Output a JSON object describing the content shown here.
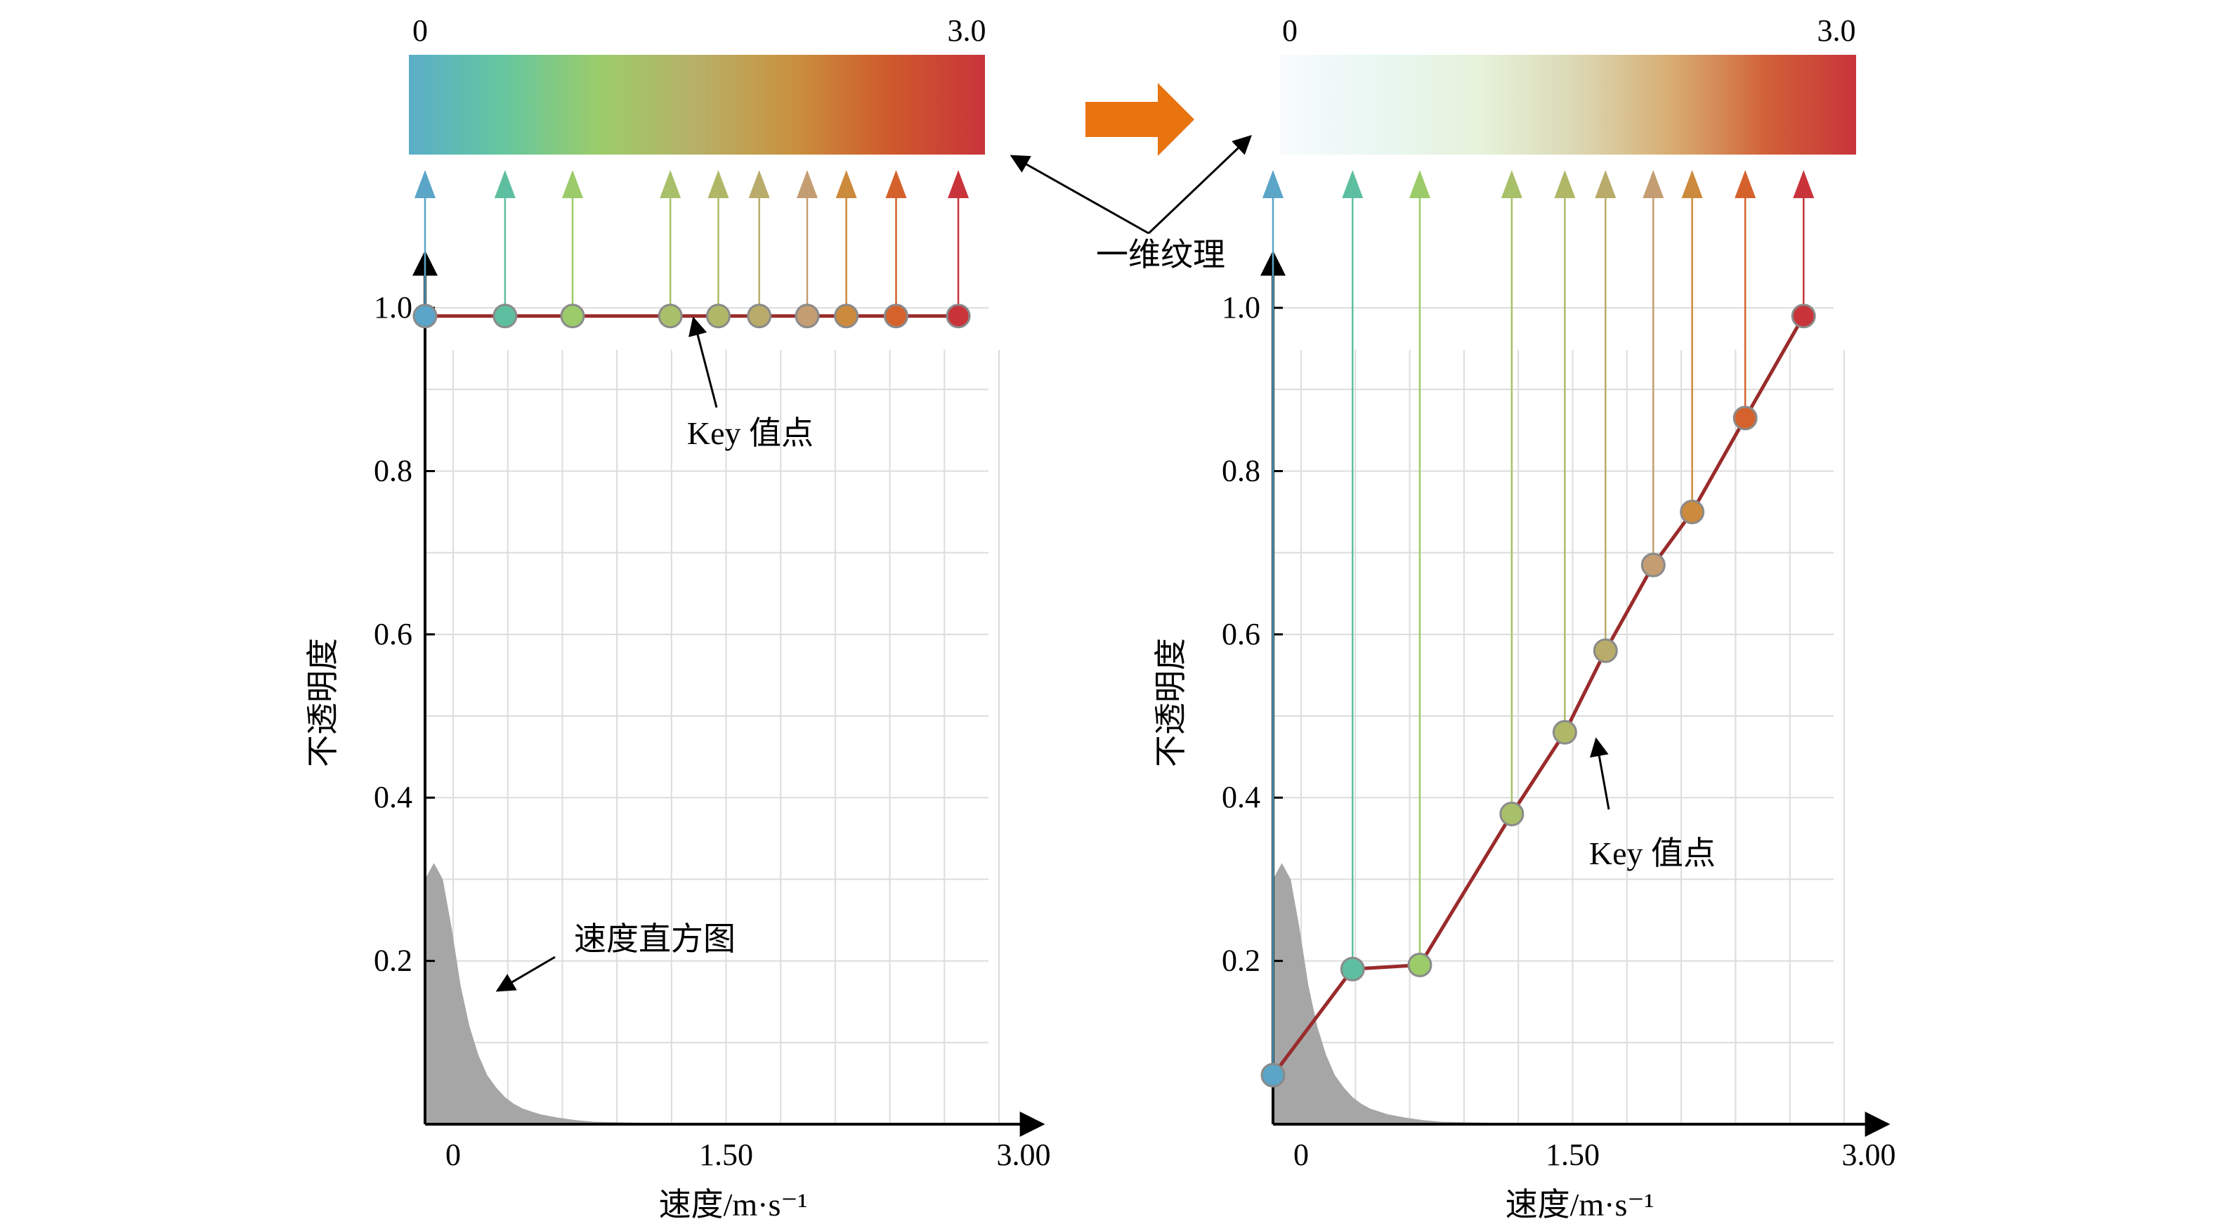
{
  "annotations": {
    "texture_label": "一维纹理",
    "key_label": "Key 值点",
    "histogram_label": "速度直方图"
  },
  "colorbar": {
    "left": {
      "min_label": "0",
      "max_label": "3.0"
    },
    "right": {
      "min_label": "0",
      "max_label": "3.0"
    },
    "stops": [
      "#5aaec8",
      "#66c79e",
      "#9ccc6a",
      "#b7b067",
      "#c9913f",
      "#cf5a2c",
      "#c8343a"
    ]
  },
  "colors": {
    "line": "#9a2b2b",
    "arrow_orange": "#e8730f",
    "histogram": "#a6a6a6",
    "grid": "#dcdcdc"
  },
  "chart_data": [
    {
      "type": "line",
      "xlabel": "速度/m·s⁻¹",
      "ylabel": "不透明度",
      "xticks": [
        "0",
        "1.50",
        "3.00"
      ],
      "xtick_values": [
        0,
        1.5,
        3.0
      ],
      "yticks": [
        "0.2",
        "0.4",
        "0.6",
        "0.8",
        "1.0"
      ],
      "ytick_values": [
        0.2,
        0.4,
        0.6,
        0.8,
        1.0
      ],
      "xlim": [
        -0.15,
        3.0
      ],
      "ylim": [
        0,
        1.05
      ],
      "grid": true,
      "points": [
        {
          "x": -0.15,
          "y": 0.99,
          "color": "#5aa5c8"
        },
        {
          "x": 0.3,
          "y": 0.99,
          "color": "#5ebfa0"
        },
        {
          "x": 0.68,
          "y": 0.99,
          "color": "#9ccb6a"
        },
        {
          "x": 1.23,
          "y": 0.99,
          "color": "#a8c06a"
        },
        {
          "x": 1.5,
          "y": 0.99,
          "color": "#b0b868"
        },
        {
          "x": 1.73,
          "y": 0.99,
          "color": "#b9ab6a"
        },
        {
          "x": 2.0,
          "y": 0.99,
          "color": "#c49e72"
        },
        {
          "x": 2.22,
          "y": 0.99,
          "color": "#cc8a3c"
        },
        {
          "x": 2.5,
          "y": 0.99,
          "color": "#d5622d"
        },
        {
          "x": 2.85,
          "y": 0.99,
          "color": "#c8343a"
        }
      ],
      "histogram": {
        "x": [
          -0.15,
          -0.1,
          -0.05,
          0.0,
          0.05,
          0.1,
          0.15,
          0.2,
          0.25,
          0.3,
          0.35,
          0.4,
          0.5,
          0.6,
          0.7,
          0.8,
          1.0,
          1.3,
          1.6,
          2.0,
          2.5,
          3.0
        ],
        "y": [
          0.3,
          0.32,
          0.3,
          0.24,
          0.17,
          0.12,
          0.085,
          0.06,
          0.045,
          0.033,
          0.025,
          0.019,
          0.012,
          0.008,
          0.005,
          0.003,
          0.002,
          0.001,
          0.0005,
          0.0003,
          0.0001,
          0
        ]
      }
    },
    {
      "type": "line",
      "xlabel": "速度/m·s⁻¹",
      "ylabel": "不透明度",
      "xticks": [
        "0",
        "1.50",
        "3.00"
      ],
      "xtick_values": [
        0,
        1.5,
        3.0
      ],
      "yticks": [
        "0.2",
        "0.4",
        "0.6",
        "0.8",
        "1.0"
      ],
      "ytick_values": [
        0.2,
        0.4,
        0.6,
        0.8,
        1.0
      ],
      "xlim": [
        -0.15,
        3.0
      ],
      "ylim": [
        0,
        1.05
      ],
      "grid": true,
      "points": [
        {
          "x": -0.15,
          "y": 0.06,
          "color": "#5aa5c8"
        },
        {
          "x": 0.3,
          "y": 0.19,
          "color": "#5ebfa0"
        },
        {
          "x": 0.68,
          "y": 0.195,
          "color": "#9ccb6a"
        },
        {
          "x": 1.2,
          "y": 0.38,
          "color": "#a8c06a"
        },
        {
          "x": 1.5,
          "y": 0.48,
          "color": "#b0b868"
        },
        {
          "x": 1.73,
          "y": 0.58,
          "color": "#b9ab6a"
        },
        {
          "x": 2.0,
          "y": 0.685,
          "color": "#c49e72"
        },
        {
          "x": 2.22,
          "y": 0.75,
          "color": "#cc8a3c"
        },
        {
          "x": 2.52,
          "y": 0.865,
          "color": "#d5622d"
        },
        {
          "x": 2.85,
          "y": 0.99,
          "color": "#c8343a"
        }
      ],
      "histogram": {
        "x": [
          -0.15,
          -0.1,
          -0.05,
          0.0,
          0.05,
          0.1,
          0.15,
          0.2,
          0.25,
          0.3,
          0.35,
          0.4,
          0.5,
          0.6,
          0.7,
          0.8,
          1.0,
          1.3,
          1.6,
          2.0,
          2.5,
          3.0
        ],
        "y": [
          0.3,
          0.32,
          0.3,
          0.24,
          0.17,
          0.12,
          0.085,
          0.06,
          0.045,
          0.033,
          0.025,
          0.019,
          0.012,
          0.008,
          0.005,
          0.003,
          0.002,
          0.001,
          0.0005,
          0.0003,
          0.0001,
          0
        ]
      }
    }
  ]
}
